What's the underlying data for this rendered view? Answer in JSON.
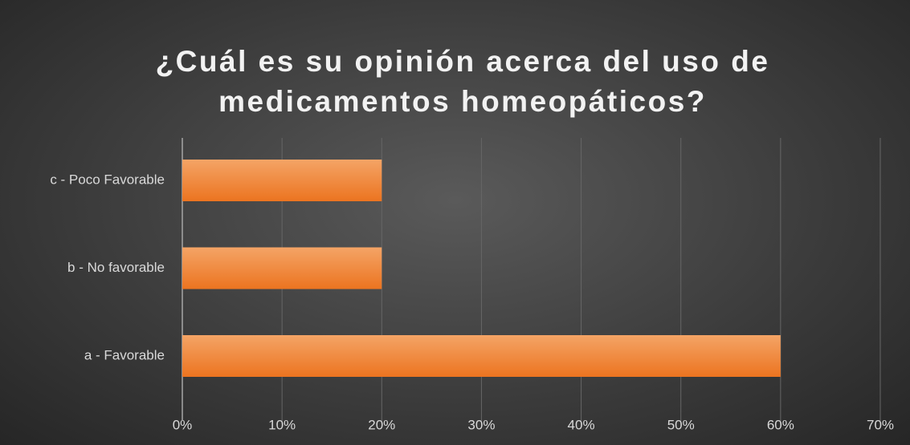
{
  "chart_data": {
    "type": "barh",
    "title": "¿Cuál es su opinión acerca del uso de medicamentos homeopáticos?",
    "categories": [
      "a - Favorable",
      "b - No favorable",
      "c - Poco Favorable"
    ],
    "values": [
      60,
      20,
      20
    ],
    "color": "#ef7d2a",
    "xlim": [
      0,
      70
    ],
    "xticks": [
      {
        "value": 0,
        "label": "0%"
      },
      {
        "value": 10,
        "label": "10%"
      },
      {
        "value": 20,
        "label": "20%"
      },
      {
        "value": 30,
        "label": "30%"
      },
      {
        "value": 40,
        "label": "40%"
      },
      {
        "value": 50,
        "label": "50%"
      },
      {
        "value": 60,
        "label": "60%"
      },
      {
        "value": 70,
        "label": "70%"
      }
    ],
    "grid": true
  }
}
